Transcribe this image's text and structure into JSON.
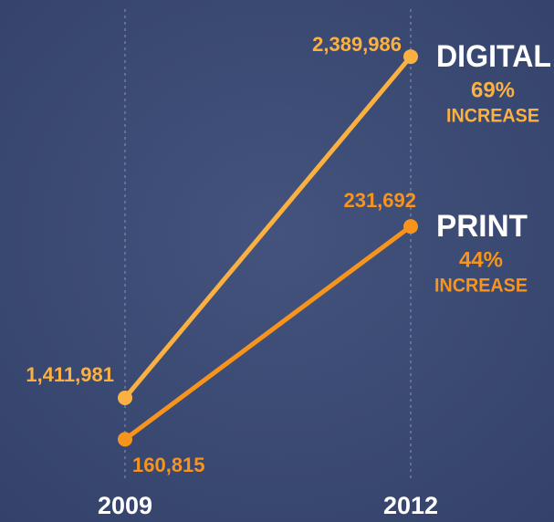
{
  "chart_data": {
    "type": "slope",
    "categories": [
      "2009",
      "2012"
    ],
    "series": [
      {
        "name": "DIGITAL",
        "color": "#fbb142",
        "values": [
          1411981,
          2389986
        ],
        "value_labels": [
          "1,411,981",
          "2,389,986"
        ],
        "change_label": "69%",
        "note": "INCREASE"
      },
      {
        "name": "PRINT",
        "color": "#f7941d",
        "axis": "y2",
        "values": [
          160815,
          231692
        ],
        "value_labels": [
          "160,815",
          "231,692"
        ],
        "change_label": "44%",
        "note": "INCREASE"
      }
    ],
    "ylim": [
      1140000,
      2500000
    ],
    "y2lim": [
      143000,
      301000
    ]
  }
}
